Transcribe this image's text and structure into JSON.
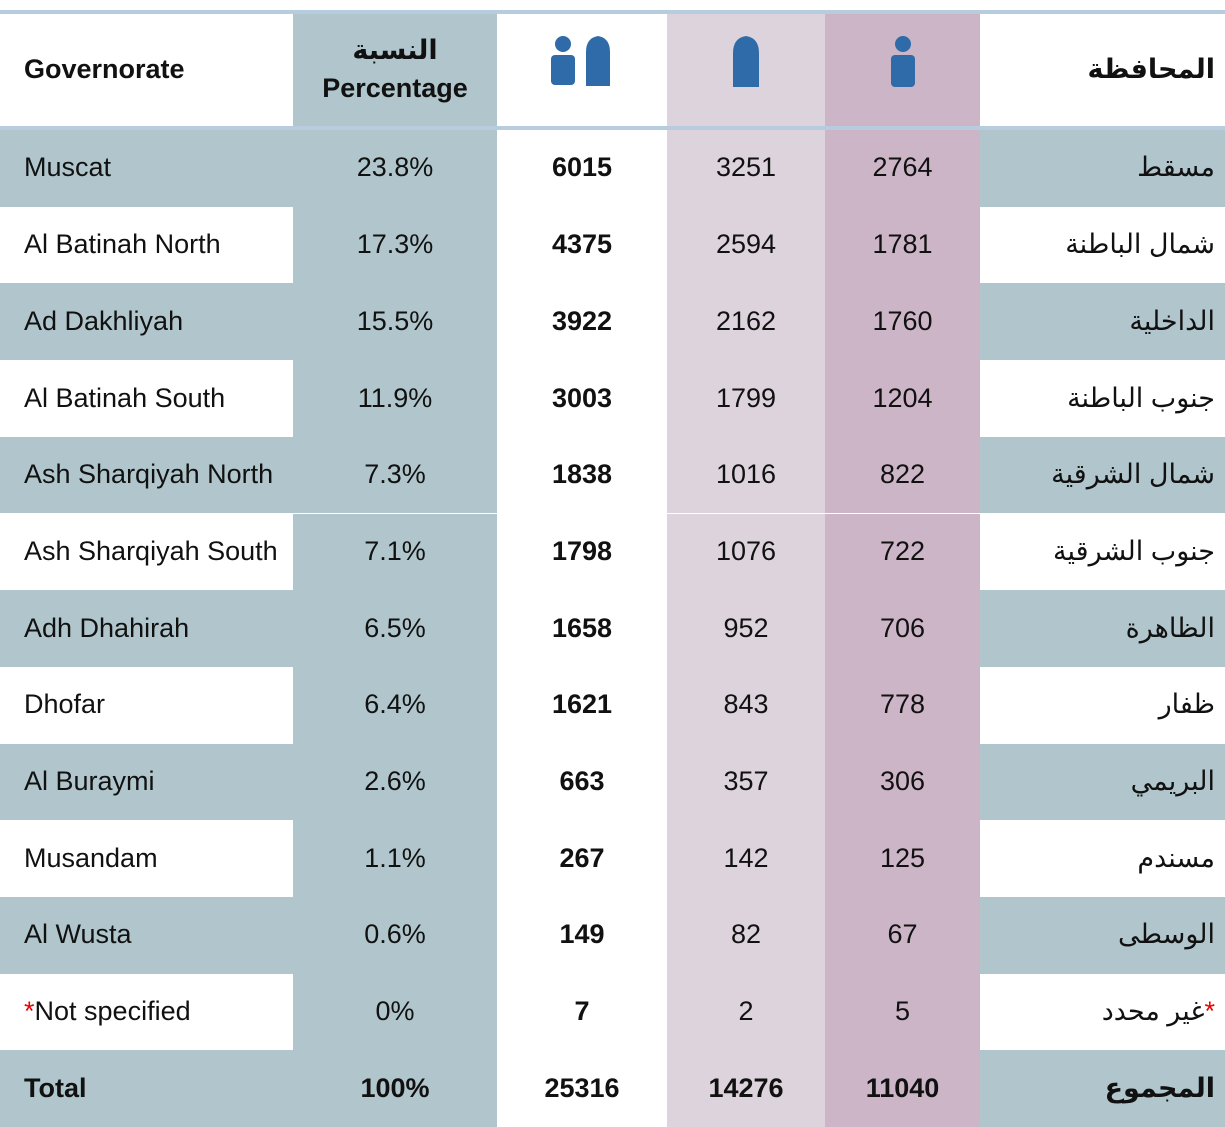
{
  "header": {
    "governorate": "Governorate",
    "percentage_ar": "النسبة",
    "percentage_en": "Percentage",
    "arabic": "المحافظة"
  },
  "rows": [
    {
      "governorate": "Muscat",
      "percentage": "23.8%",
      "total": 6015,
      "female": 3251,
      "male": 2764,
      "arabic": "مسقط"
    },
    {
      "governorate": "Al Batinah North",
      "percentage": "17.3%",
      "total": 4375,
      "female": 2594,
      "male": 1781,
      "arabic": "شمال الباطنة"
    },
    {
      "governorate": "Ad Dakhliyah",
      "percentage": "15.5%",
      "total": 3922,
      "female": 2162,
      "male": 1760,
      "arabic": "الداخلية"
    },
    {
      "governorate": "Al Batinah South",
      "percentage": "11.9%",
      "total": 3003,
      "female": 1799,
      "male": 1204,
      "arabic": "جنوب الباطنة"
    },
    {
      "governorate": "Ash Sharqiyah North",
      "percentage": "7.3%",
      "total": 1838,
      "female": 1016,
      "male": 822,
      "arabic": "شمال الشرقية"
    },
    {
      "governorate": "Ash Sharqiyah South",
      "percentage": "7.1%",
      "total": 1798,
      "female": 1076,
      "male": 722,
      "arabic": "جنوب الشرقية"
    },
    {
      "governorate": "Adh Dhahirah",
      "percentage": "6.5%",
      "total": 1658,
      "female": 952,
      "male": 706,
      "arabic": "الظاهرة"
    },
    {
      "governorate": "Dhofar",
      "percentage": "6.4%",
      "total": 1621,
      "female": 843,
      "male": 778,
      "arabic": "ظفار"
    },
    {
      "governorate": "Al Buraymi",
      "percentage": "2.6%",
      "total": 663,
      "female": 357,
      "male": 306,
      "arabic": "البريمي"
    },
    {
      "governorate": "Musandam",
      "percentage": "1.1%",
      "total": 267,
      "female": 142,
      "male": 125,
      "arabic": "مسندم"
    },
    {
      "governorate": "Al Wusta",
      "percentage": "0.6%",
      "total": 149,
      "female": 82,
      "male": 67,
      "arabic": "الوسطى"
    },
    {
      "governorate": "Not specified",
      "mark": "*",
      "percentage": "0%",
      "total": 7,
      "female": 2,
      "male": 5,
      "arabic": "غير محدد"
    },
    {
      "governorate": "Total",
      "percentage": "100%",
      "total": 25316,
      "female": 14276,
      "male": 11040,
      "arabic": "المجموع",
      "bold": true
    }
  ]
}
